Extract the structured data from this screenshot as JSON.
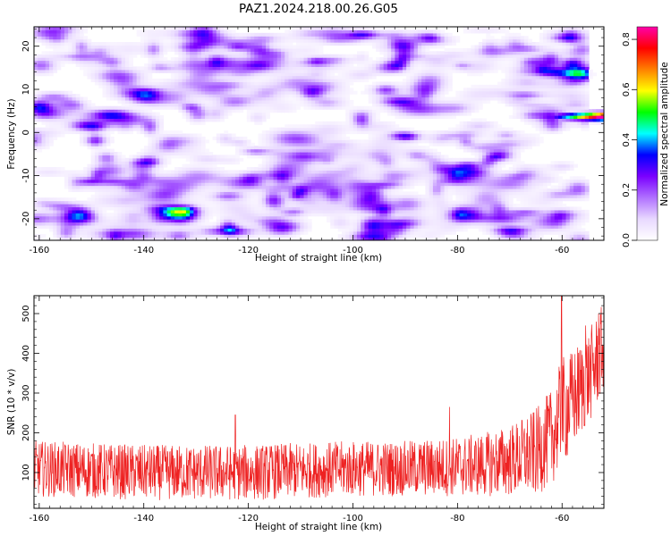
{
  "figure": {
    "title": "PAZ1.2024.218.00.26.G05"
  },
  "chart_data": [
    {
      "type": "heatmap",
      "xlabel": "Height of straight line (km)",
      "ylabel": "Frequency (Hz)",
      "xlim": [
        -161,
        -52
      ],
      "ylim": [
        -25,
        24.5
      ],
      "xticks": [
        -160,
        -140,
        -120,
        -100,
        -80,
        -60
      ],
      "yticks": [
        -20,
        -10,
        0,
        10,
        20
      ],
      "colorbar": {
        "label": "Normalized spectral amplitude",
        "range": [
          0,
          0.85
        ],
        "ticks": [
          "0.0",
          "0.2",
          "0.4",
          "0.6",
          "0.8"
        ],
        "tick_values": [
          0,
          0.2,
          0.4,
          0.6,
          0.8
        ],
        "colormap": "gist_rainbow_r",
        "stops": [
          "#ffffff",
          "#e8d8ff",
          "#b070ff",
          "#7a00ff",
          "#0000ff",
          "#00ffff",
          "#00ff00",
          "#ffff00",
          "#ff8000",
          "#ff0000",
          "#ff00aa"
        ]
      },
      "noise_level": [
        0.0,
        0.18
      ],
      "noise_cutoff_x": -55,
      "features": [
        {
          "name": "signal",
          "x": [
            -72,
            -52
          ],
          "y": 3.8,
          "peak": 0.85,
          "peak_x": -52
        }
      ]
    },
    {
      "type": "line",
      "xlabel": "Height of straight line (km)",
      "ylabel": "SNR (10 * v/v)",
      "xlim": [
        -161,
        -52
      ],
      "ylim": [
        10,
        545
      ],
      "xticks": [
        -160,
        -140,
        -120,
        -100,
        -80,
        -60
      ],
      "yticks": [
        100,
        200,
        300,
        400,
        500
      ],
      "color": "#ee2222",
      "series": [
        {
          "x": [
            -161,
            -150,
            -140,
            -130,
            -120,
            -110,
            -100,
            -90,
            -80,
            -75,
            -70,
            -65,
            -62,
            -60,
            -58,
            -56,
            -54,
            -52
          ],
          "y": [
            110,
            105,
            100,
            100,
            100,
            105,
            110,
            110,
            115,
            120,
            130,
            150,
            190,
            250,
            280,
            320,
            360,
            420
          ],
          "noise_amplitude": [
            70,
            70,
            70,
            70,
            70,
            70,
            70,
            70,
            75,
            80,
            90,
            110,
            120,
            140,
            130,
            120,
            120,
            110
          ],
          "spikes": [
            [
              -60.1,
              545
            ],
            [
              -55.5,
              470
            ],
            [
              -53,
              500
            ],
            [
              -81.5,
              265
            ],
            [
              -122.5,
              245
            ]
          ]
        }
      ]
    }
  ]
}
